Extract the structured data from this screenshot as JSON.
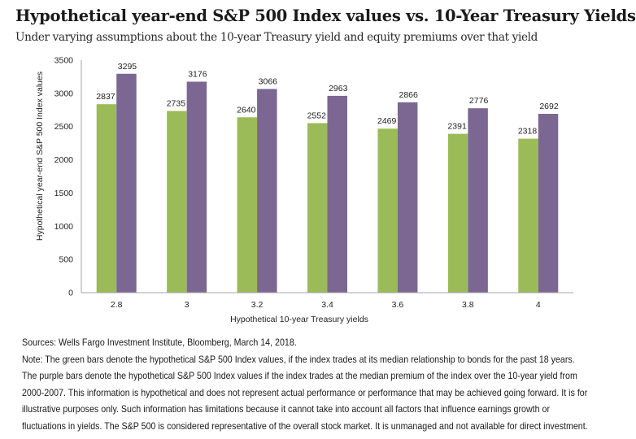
{
  "title": "Hypothetical year-end S&P 500 Index values vs. 10-Year Treasury Yields",
  "subtitle": "Under varying assumptions about the 10-year Treasury yield and equity premiums over that yield",
  "chart_data": {
    "type": "bar",
    "title": "Hypothetical year-end S&P 500 Index values vs. 10-Year Treasury Yields",
    "subtitle": "Under varying assumptions about the 10-year Treasury yield and equity premiums over that yield",
    "xlabel": "Hypothetical 10-year Treasury yields",
    "ylabel": "Hypothetical year-end S&P 500 Index values",
    "categories": [
      "2.8",
      "3",
      "3.2",
      "3.4",
      "3.6",
      "3.8",
      "4"
    ],
    "series": [
      {
        "name": "Median relationship to bonds (past 18 years)",
        "color": "#9BBB59",
        "values": [
          2837,
          2735,
          2640,
          2552,
          2469,
          2391,
          2318
        ]
      },
      {
        "name": "Median premium over 10-year yield (2000-2007)",
        "color": "#7B6791",
        "values": [
          3295,
          3176,
          3066,
          2963,
          2866,
          2776,
          2692
        ]
      }
    ],
    "ylim": [
      0,
      3500
    ],
    "yticks": [
      0,
      500,
      1000,
      1500,
      2000,
      2500,
      3000,
      3500
    ],
    "grid": false,
    "legend": "none",
    "data_labels": true
  },
  "notes": [
    "Sources: Wells Fargo Investment Institute, Bloomberg, March 14, 2018.",
    "Note: The green bars denote the hypothetical S&P 500 Index values, if the index trades at its median relationship to bonds for the past 18 years.",
    "The purple bars denote the hypothetical S&P 500 Index values if the index trades at the median premium of the index over the 10-year yield from",
    "2000-2007. This information is hypothetical and does not represent actual performance or performance that may be achieved going forward.  It is for",
    "illustrative purposes only.  Such information has limitations because it cannot take into account all factors that influence earnings growth or",
    "fluctuations in yields. The S&P 500 is considered representative of the overall stock market.  It is unmanaged and not available for direct investment."
  ]
}
